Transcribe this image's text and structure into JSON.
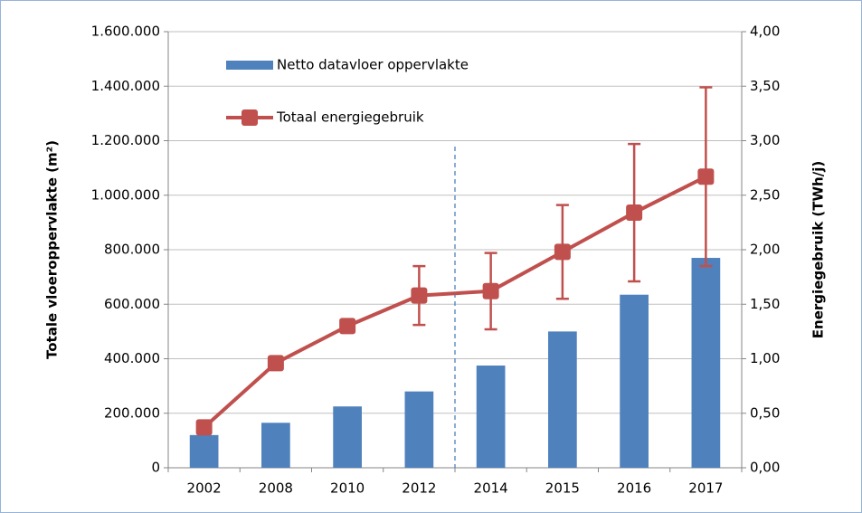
{
  "chart_data": {
    "type": "bar_line",
    "categories": [
      "2002",
      "2008",
      "2010",
      "2012",
      "2014",
      "2015",
      "2016",
      "2017"
    ],
    "series": [
      {
        "name": "Netto datavloer oppervlakte",
        "color": "#4f81bd",
        "type": "bar",
        "values": [
          120000,
          165000,
          225000,
          280000,
          375000,
          500000,
          635000,
          770000
        ]
      },
      {
        "name": "Totaal energiegebruik",
        "color": "#c0504d",
        "type": "line",
        "axis": "y2",
        "values": [
          0.37,
          0.96,
          1.3,
          1.58,
          1.62,
          1.98,
          2.34,
          2.67
        ],
        "errors": [
          null,
          null,
          null,
          0.27,
          0.35,
          0.43,
          0.63,
          0.82
        ]
      }
    ],
    "ylabel": "Totale vloeroppervlakte (m²)",
    "y2label": "Energiegebruik (TWh/j)",
    "ylim": [
      0,
      1600000
    ],
    "yticks": [
      0,
      {
        "value": 200000,
        "label": "200.000"
      },
      {
        "value": 400000,
        "label": "400.000"
      },
      {
        "value": 600000,
        "label": "600.000"
      },
      {
        "value": 800000,
        "label": "800.000"
      },
      {
        "value": 1000000,
        "label": "1.000.000"
      },
      {
        "value": 1200000,
        "label": "1.200.000"
      },
      {
        "value": 1400000,
        "label": "1.400.000"
      },
      {
        "value": 1600000,
        "label": "1.600.000"
      }
    ],
    "y2lim": [
      0,
      4
    ],
    "y2ticks": [
      {
        "value": 0,
        "label": "0,00"
      },
      {
        "value": 0.5,
        "label": "0,50"
      },
      {
        "value": 1,
        "label": "1,00"
      },
      {
        "value": 1.5,
        "label": "1,50"
      },
      {
        "value": 2,
        "label": "2,00"
      },
      {
        "value": 2.5,
        "label": "2,50"
      },
      {
        "value": 3,
        "label": "3,00"
      },
      {
        "value": 3.5,
        "label": "3,50"
      },
      {
        "value": 4,
        "label": "4,00"
      }
    ],
    "grid": true,
    "legend": "upper left"
  }
}
